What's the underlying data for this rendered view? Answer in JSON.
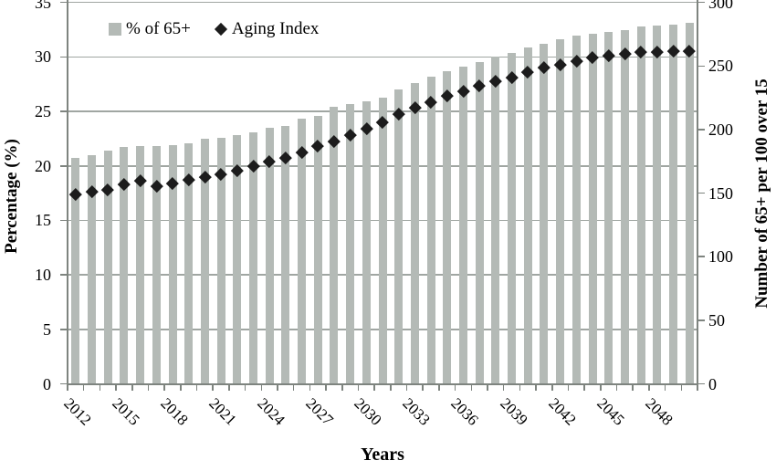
{
  "legend": {
    "bar_series_label": "% of 65+",
    "scatter_series_label": "Aging Index"
  },
  "axes": {
    "left_title": "Percentage (%)",
    "right_title": "Number of 65+ per 100 over 15",
    "x_title": "Years"
  },
  "colors": {
    "bar_fill": "#b4bab6",
    "diamond_fill": "#1c1c1c",
    "gridline": "#a0a6a2",
    "axis_line": "#7e847f"
  },
  "chart_data": {
    "type": "bar",
    "subtype": "combo-bar-scatter",
    "title": "",
    "xlabel": "Years",
    "ylabel_left": "Percentage (%)",
    "ylabel_right": "Number of 65+ per 100 over 15",
    "ylim_left": [
      0,
      35
    ],
    "ylim_right": [
      0,
      300
    ],
    "yticks_left": [
      0,
      5,
      10,
      15,
      20,
      25,
      30,
      35
    ],
    "yticks_right": [
      0,
      50,
      100,
      150,
      200,
      250,
      300
    ],
    "grid": "horizontal",
    "legend_position": "top-center",
    "xtick_labels": [
      "2012",
      "2015",
      "2018",
      "2021",
      "2024",
      "2027",
      "2030",
      "2033",
      "2036",
      "2039",
      "2042",
      "2045",
      "2048"
    ],
    "xtick_label_every": 3,
    "x": [
      2012,
      2013,
      2014,
      2015,
      2016,
      2017,
      2018,
      2019,
      2020,
      2021,
      2022,
      2023,
      2024,
      2025,
      2026,
      2027,
      2028,
      2029,
      2030,
      2031,
      2032,
      2033,
      2034,
      2035,
      2036,
      2037,
      2038,
      2039,
      2040,
      2041,
      2042,
      2043,
      2044,
      2045,
      2046,
      2047,
      2048,
      2049,
      2050
    ],
    "series": [
      {
        "name": "% of 65+",
        "type": "bar",
        "axis": "left",
        "color": "#b4bab6",
        "values": [
          20.7,
          21.0,
          21.4,
          21.7,
          21.8,
          21.8,
          21.9,
          22.1,
          22.5,
          22.6,
          22.8,
          23.1,
          23.5,
          23.7,
          24.3,
          24.6,
          25.4,
          25.7,
          25.9,
          26.3,
          27.0,
          27.6,
          28.2,
          28.7,
          29.1,
          29.5,
          30.0,
          30.4,
          30.9,
          31.2,
          31.6,
          32.0,
          32.1,
          32.3,
          32.5,
          32.8,
          32.9,
          33.0,
          33.1
        ]
      },
      {
        "name": "Aging Index",
        "type": "scatter",
        "marker": "diamond",
        "axis": "right",
        "color": "#1c1c1c",
        "values": [
          149,
          151,
          153,
          157,
          160,
          155.5,
          157.5,
          160.5,
          163,
          165,
          168,
          171.5,
          175,
          178,
          182,
          187,
          191,
          196,
          201,
          206,
          212,
          217,
          222,
          227,
          230,
          234.5,
          238,
          241,
          245,
          249,
          251,
          254,
          257,
          258.5,
          259.5,
          261,
          261.5,
          262,
          262
        ]
      }
    ]
  }
}
